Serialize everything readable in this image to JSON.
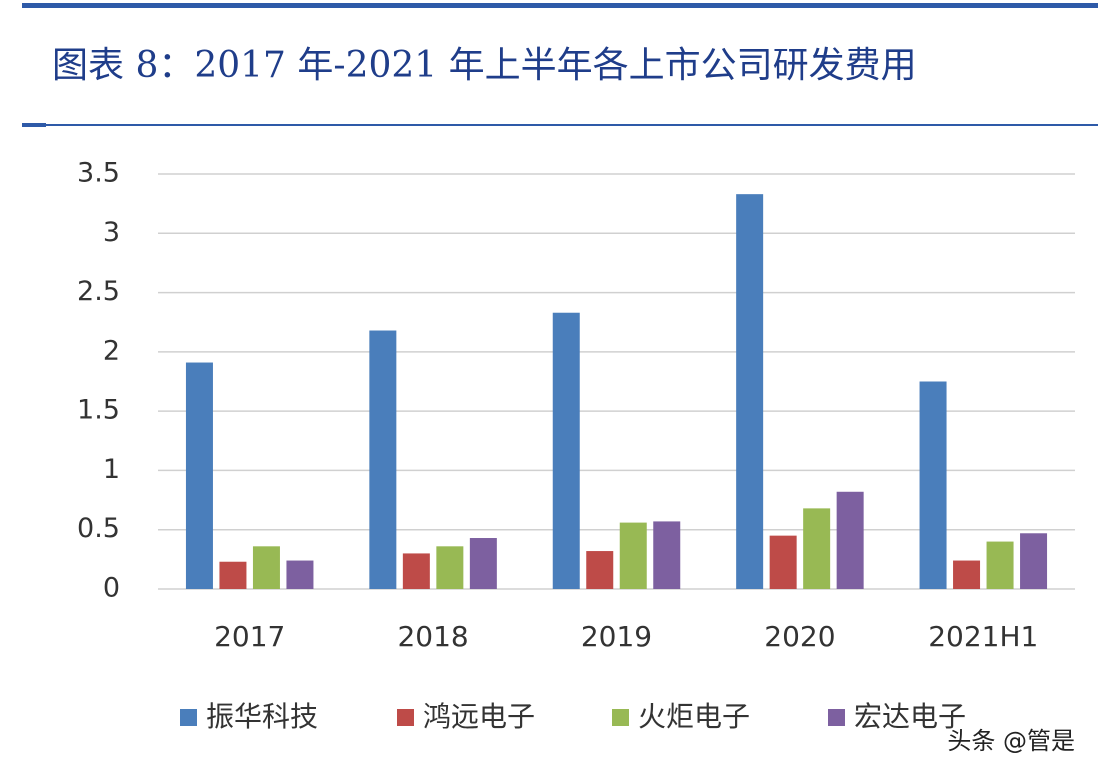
{
  "chart_data": {
    "type": "bar",
    "title": "图表 8：2017 年-2021 年上半年各上市公司研发费用",
    "categories": [
      "2017",
      "2018",
      "2019",
      "2020",
      "2021H1"
    ],
    "series": [
      {
        "name": "振华科技",
        "color": "#4a7ebb",
        "values": [
          1.91,
          2.18,
          2.33,
          3.33,
          1.75
        ]
      },
      {
        "name": "鸿远电子",
        "color": "#be4b48",
        "values": [
          0.23,
          0.3,
          0.32,
          0.45,
          0.24
        ]
      },
      {
        "name": "火炬电子",
        "color": "#98b954",
        "values": [
          0.36,
          0.36,
          0.56,
          0.68,
          0.4
        ]
      },
      {
        "name": "宏达电子",
        "color": "#7d60a0",
        "values": [
          0.24,
          0.43,
          0.57,
          0.82,
          0.47
        ]
      }
    ],
    "ylim": [
      0,
      3.5
    ],
    "yticks": [
      0,
      0.5,
      1,
      1.5,
      2,
      2.5,
      3,
      3.5
    ],
    "grid": true,
    "legend": "bottom",
    "watermark": "头条 @管是"
  }
}
